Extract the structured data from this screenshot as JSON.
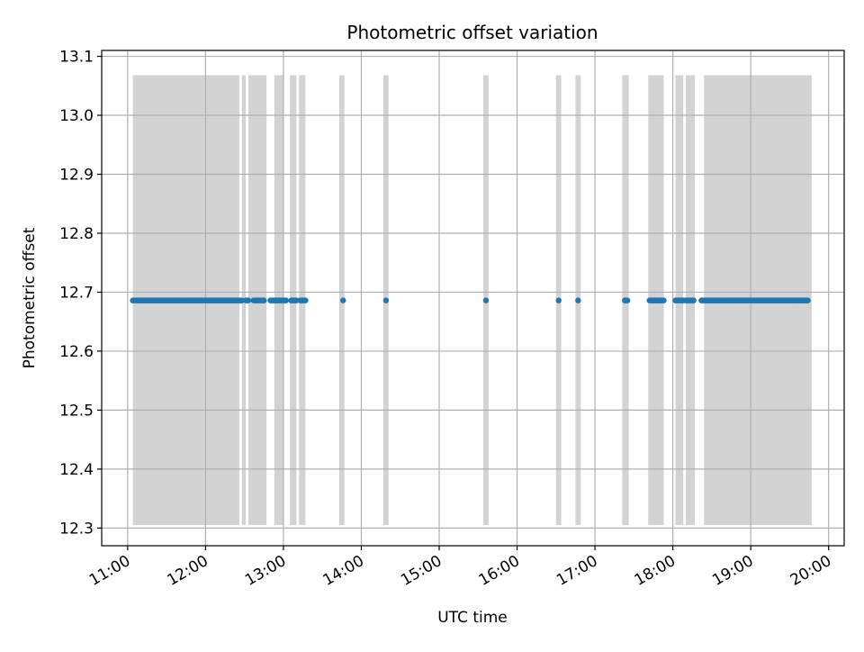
{
  "chart_data": {
    "type": "scatter",
    "title": "Photometric offset variation",
    "xlabel": "UTC time",
    "ylabel": "Photometric offset",
    "x_unit": "UTC time of day (HH:MM)",
    "xlim": [
      "10:40",
      "20:12"
    ],
    "ylim": [
      12.27,
      13.11
    ],
    "xticks": [
      "11:00",
      "12:00",
      "13:00",
      "14:00",
      "15:00",
      "16:00",
      "17:00",
      "18:00",
      "19:00",
      "20:00"
    ],
    "yticks": [
      12.3,
      12.4,
      12.5,
      12.6,
      12.7,
      12.8,
      12.9,
      13.0,
      13.1
    ],
    "grid": true,
    "series": [
      {
        "color": "#1f77b4",
        "y_value": 12.686,
        "x_ranges": [
          [
            "11:04",
            "12:28"
          ],
          [
            "12:31",
            "12:33"
          ],
          [
            "12:37",
            "12:45"
          ],
          [
            "12:50",
            "12:55"
          ],
          [
            "12:55",
            "13:02"
          ],
          [
            "13:06",
            "13:10"
          ],
          [
            "13:13",
            "13:17"
          ],
          [
            "13:46",
            "13:46"
          ],
          [
            "14:19",
            "14:19"
          ],
          [
            "15:36",
            "15:36"
          ],
          [
            "16:32",
            "16:32"
          ],
          [
            "16:47",
            "16:47"
          ],
          [
            "17:23",
            "17:25"
          ],
          [
            "17:42",
            "17:53"
          ],
          [
            "18:02",
            "18:08"
          ],
          [
            "18:10",
            "18:16"
          ],
          [
            "18:22",
            "19:44"
          ]
        ]
      }
    ],
    "shaded_ranges": {
      "color": "#d3d3d3",
      "y_range": [
        12.305,
        13.068
      ],
      "x_ranges": [
        [
          "11:04",
          "12:26"
        ],
        [
          "12:28",
          "12:31"
        ],
        [
          "12:33",
          "12:47"
        ],
        [
          "12:53",
          "13:00"
        ],
        [
          "13:05",
          "13:10"
        ],
        [
          "13:12",
          "13:17"
        ],
        [
          "13:43",
          "13:47"
        ],
        [
          "14:17",
          "14:21"
        ],
        [
          "15:34",
          "15:38"
        ],
        [
          "16:30",
          "16:34"
        ],
        [
          "16:45",
          "16:49"
        ],
        [
          "17:21",
          "17:26"
        ],
        [
          "17:41",
          "17:53"
        ],
        [
          "18:02",
          "18:08"
        ],
        [
          "18:10",
          "18:17"
        ],
        [
          "18:24",
          "19:47"
        ]
      ]
    }
  }
}
